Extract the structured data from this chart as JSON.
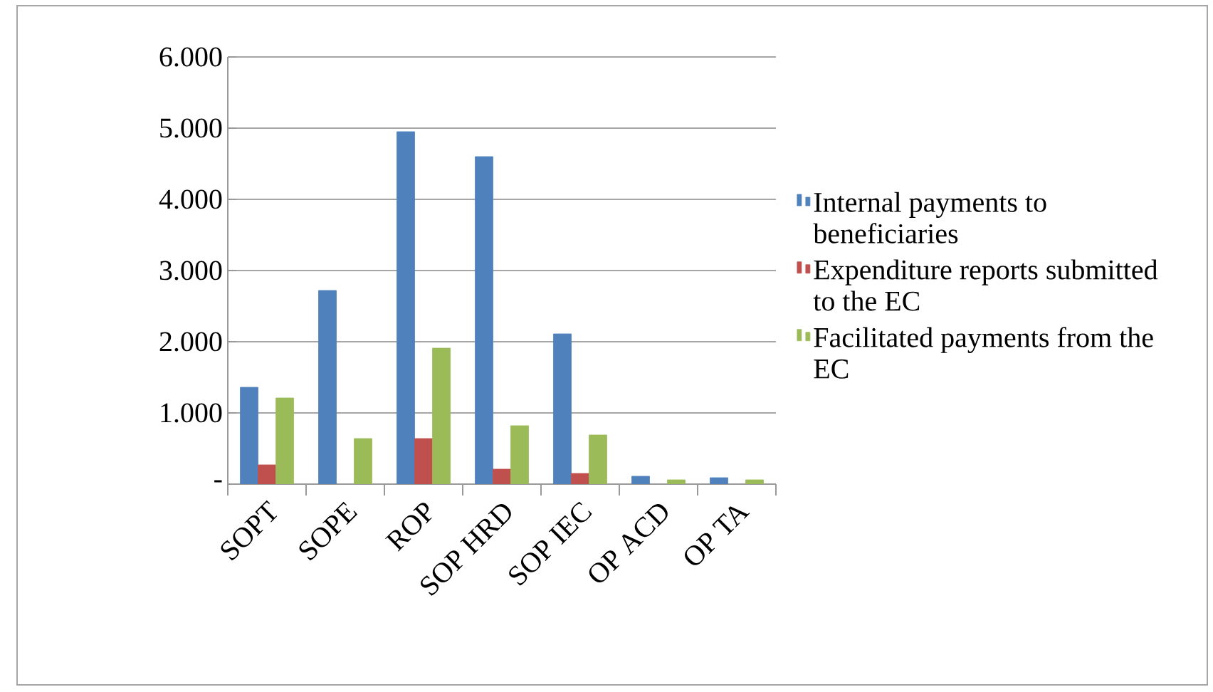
{
  "chart_data": {
    "type": "bar",
    "categories": [
      "SOPT",
      "SOPE",
      "ROP",
      "SOP HRD",
      "SOP IEC",
      "OP ACD",
      "OP TA"
    ],
    "series": [
      {
        "name": "Internal payments to beneficiaries",
        "color": "#4f81bd",
        "values": [
          1360,
          2720,
          4950,
          4600,
          2110,
          110,
          90
        ]
      },
      {
        "name": "Expenditure reports submitted to the EC",
        "color": "#c0504d",
        "values": [
          270,
          null,
          640,
          210,
          150,
          null,
          null
        ]
      },
      {
        "name": "Facilitated payments from the EC",
        "color": "#9bbb59",
        "values": [
          1210,
          640,
          1910,
          820,
          690,
          60,
          60
        ]
      }
    ],
    "ylim": [
      0,
      6000
    ],
    "yticks": [
      {
        "value": 0,
        "label": "-"
      },
      {
        "value": 1000,
        "label": "1.000"
      },
      {
        "value": 2000,
        "label": "2.000"
      },
      {
        "value": 3000,
        "label": "3.000"
      },
      {
        "value": 4000,
        "label": "4.000"
      },
      {
        "value": 5000,
        "label": "5.000"
      },
      {
        "value": 6000,
        "label": "6.000"
      }
    ],
    "grid": "y",
    "legend": "right"
  }
}
